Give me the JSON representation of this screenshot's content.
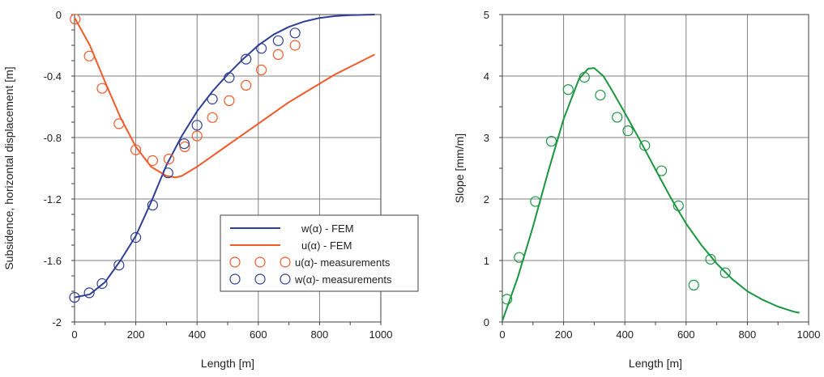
{
  "chart_data": [
    {
      "type": "line",
      "xlabel": "Length [m]",
      "ylabel": "Subsidence, horizontal displacement [m]",
      "xlim": [
        0,
        1000
      ],
      "ylim": [
        -2,
        0
      ],
      "xticks": [
        "0",
        "200",
        "400",
        "600",
        "800",
        "1000"
      ],
      "yticks": [
        "0",
        "-0.4",
        "-0.8",
        "-1.2",
        "-1.6",
        "-2"
      ],
      "grid": true,
      "legend_position": "bottom-right",
      "colors": {
        "w": "#2f3f96",
        "u": "#f05a28"
      },
      "series": [
        {
          "name": "w(α) - FEM",
          "kind": "line",
          "color": "#2f3f96",
          "x": [
            0,
            50,
            100,
            150,
            200,
            250,
            300,
            350,
            400,
            450,
            500,
            550,
            600,
            650,
            700,
            750,
            800,
            850,
            900,
            950,
            980
          ],
          "y": [
            -1.84,
            -1.82,
            -1.74,
            -1.6,
            -1.44,
            -1.22,
            -0.98,
            -0.79,
            -0.63,
            -0.5,
            -0.39,
            -0.29,
            -0.2,
            -0.13,
            -0.08,
            -0.045,
            -0.022,
            -0.01,
            -0.004,
            -0.001,
            0
          ]
        },
        {
          "name": "u(α) - FEM",
          "kind": "line",
          "color": "#f05a28",
          "x": [
            0,
            50,
            100,
            150,
            200,
            250,
            300,
            330,
            350,
            400,
            450,
            500,
            550,
            600,
            650,
            700,
            750,
            800,
            850,
            900,
            950,
            980
          ],
          "y": [
            -0.02,
            -0.2,
            -0.44,
            -0.67,
            -0.86,
            -0.99,
            -1.05,
            -1.06,
            -1.05,
            -0.99,
            -0.92,
            -0.85,
            -0.78,
            -0.71,
            -0.64,
            -0.57,
            -0.51,
            -0.45,
            -0.39,
            -0.34,
            -0.29,
            -0.26
          ]
        },
        {
          "name": "u(α)- measurements",
          "kind": "markers",
          "color": "#f05a28",
          "x": [
            2,
            48,
            90,
            145,
            200,
            255,
            308,
            360,
            400,
            450,
            505,
            560,
            610,
            665,
            720
          ],
          "y": [
            -0.03,
            -0.27,
            -0.48,
            -0.71,
            -0.88,
            -0.95,
            -0.94,
            -0.86,
            -0.79,
            -0.67,
            -0.56,
            -0.46,
            -0.36,
            -0.26,
            -0.2
          ]
        },
        {
          "name": "w(α)- measurements",
          "kind": "markers",
          "color": "#2f3f96",
          "x": [
            0,
            48,
            90,
            145,
            200,
            255,
            305,
            358,
            400,
            450,
            505,
            560,
            610,
            665,
            720
          ],
          "y": [
            -1.84,
            -1.81,
            -1.75,
            -1.63,
            -1.45,
            -1.24,
            -1.03,
            -0.84,
            -0.72,
            -0.55,
            -0.41,
            -0.29,
            -0.22,
            -0.17,
            -0.12
          ]
        }
      ]
    },
    {
      "type": "line",
      "xlabel": "Length [m]",
      "ylabel": "Slope [mm/m]",
      "xlim": [
        0,
        1000
      ],
      "ylim": [
        0,
        5
      ],
      "xticks": [
        "0",
        "200",
        "400",
        "600",
        "800",
        "1000"
      ],
      "yticks": [
        "0",
        "1",
        "2",
        "3",
        "4",
        "5"
      ],
      "grid": true,
      "colors": {
        "slope": "#1a9641"
      },
      "series": [
        {
          "kind": "line",
          "color": "#1a9641",
          "x": [
            0,
            50,
            100,
            150,
            200,
            250,
            280,
            300,
            330,
            360,
            400,
            450,
            500,
            550,
            600,
            650,
            700,
            750,
            800,
            850,
            900,
            950,
            970
          ],
          "y": [
            0.02,
            0.72,
            1.55,
            2.45,
            3.3,
            3.95,
            4.12,
            4.13,
            4.0,
            3.75,
            3.4,
            2.95,
            2.48,
            2.02,
            1.6,
            1.25,
            0.95,
            0.7,
            0.5,
            0.36,
            0.25,
            0.17,
            0.15
          ]
        },
        {
          "kind": "markers",
          "color": "#1a9641",
          "x": [
            15,
            55,
            108,
            160,
            215,
            268,
            320,
            375,
            410,
            465,
            520,
            575,
            625,
            680,
            728
          ],
          "y": [
            0.37,
            1.05,
            1.96,
            2.94,
            3.78,
            3.98,
            3.69,
            3.33,
            3.11,
            2.87,
            2.46,
            1.89,
            0.6,
            1.02,
            0.8
          ]
        }
      ]
    }
  ]
}
